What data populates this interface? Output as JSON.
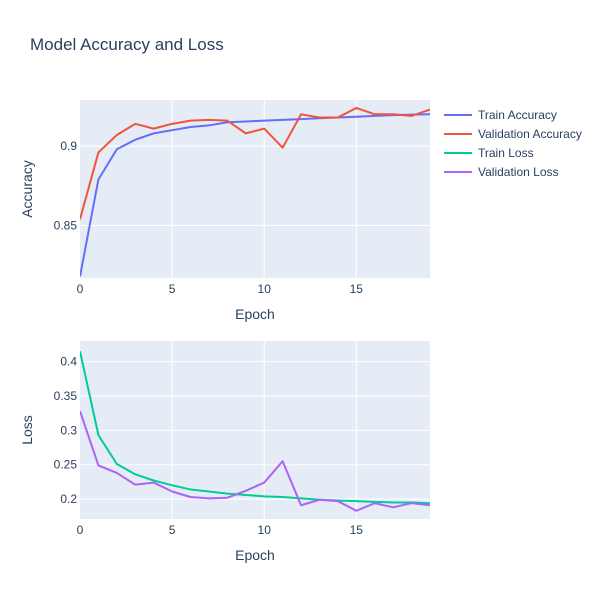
{
  "chart_data": {
    "type": "line",
    "title": "Model Accuracy and Loss",
    "legend_position": "top-right",
    "grid": true,
    "colors": {
      "plot_bg": "#e5ecf6",
      "grid": "#ffffff",
      "text": "#2a3f5f"
    },
    "legend": [
      "Train Accuracy",
      "Validation Accuracy",
      "Train Loss",
      "Validation Loss"
    ],
    "subplots": [
      {
        "xlabel": "Epoch",
        "ylabel": "Accuracy",
        "xlim": [
          0,
          19
        ],
        "ylim": [
          0.817,
          0.929
        ],
        "x_ticks": [
          0,
          5,
          10,
          15
        ],
        "x_tick_labels": [
          "0",
          "5",
          "10",
          "15"
        ],
        "y_ticks": [
          0.85,
          0.9
        ],
        "y_tick_labels": [
          "0.85",
          "0.9"
        ],
        "series": [
          {
            "name": "Train Accuracy",
            "color": "#636efa",
            "x": [
              0,
              1,
              2,
              3,
              4,
              5,
              6,
              7,
              8,
              9,
              10,
              11,
              12,
              13,
              14,
              15,
              16,
              17,
              18,
              19
            ],
            "y": [
              0.818,
              0.879,
              0.898,
              0.904,
              0.908,
              0.91,
              0.912,
              0.913,
              0.915,
              0.9155,
              0.916,
              0.9165,
              0.917,
              0.9175,
              0.918,
              0.9185,
              0.919,
              0.9195,
              0.9198,
              0.92
            ]
          },
          {
            "name": "Validation Accuracy",
            "color": "#ef553b",
            "x": [
              0,
              1,
              2,
              3,
              4,
              5,
              6,
              7,
              8,
              9,
              10,
              11,
              12,
              13,
              14,
              15,
              16,
              17,
              18,
              19
            ],
            "y": [
              0.854,
              0.896,
              0.907,
              0.914,
              0.911,
              0.914,
              0.916,
              0.9165,
              0.916,
              0.908,
              0.911,
              0.899,
              0.92,
              0.918,
              0.918,
              0.924,
              0.92,
              0.92,
              0.919,
              0.923
            ]
          }
        ]
      },
      {
        "xlabel": "Epoch",
        "ylabel": "Loss",
        "xlim": [
          0,
          19
        ],
        "ylim": [
          0.171,
          0.43
        ],
        "x_ticks": [
          0,
          5,
          10,
          15
        ],
        "x_tick_labels": [
          "0",
          "5",
          "10",
          "15"
        ],
        "y_ticks": [
          0.2,
          0.25,
          0.3,
          0.35,
          0.4
        ],
        "y_tick_labels": [
          "0.2",
          "0.25",
          "0.3",
          "0.35",
          "0.4"
        ],
        "series": [
          {
            "name": "Train Loss",
            "color": "#00cc96",
            "x": [
              0,
              1,
              2,
              3,
              4,
              5,
              6,
              7,
              8,
              9,
              10,
              11,
              12,
              13,
              14,
              15,
              16,
              17,
              18,
              19
            ],
            "y": [
              0.415,
              0.293,
              0.251,
              0.236,
              0.227,
              0.22,
              0.214,
              0.211,
              0.208,
              0.206,
              0.204,
              0.203,
              0.201,
              0.199,
              0.198,
              0.197,
              0.196,
              0.195,
              0.195,
              0.194
            ]
          },
          {
            "name": "Validation Loss",
            "color": "#ab63fa",
            "x": [
              0,
              1,
              2,
              3,
              4,
              5,
              6,
              7,
              8,
              9,
              10,
              11,
              12,
              13,
              14,
              15,
              16,
              17,
              18,
              19
            ],
            "y": [
              0.328,
              0.249,
              0.238,
              0.221,
              0.224,
              0.211,
              0.203,
              0.201,
              0.202,
              0.212,
              0.224,
              0.255,
              0.191,
              0.199,
              0.197,
              0.183,
              0.194,
              0.188,
              0.194,
              0.191
            ]
          }
        ]
      }
    ]
  }
}
